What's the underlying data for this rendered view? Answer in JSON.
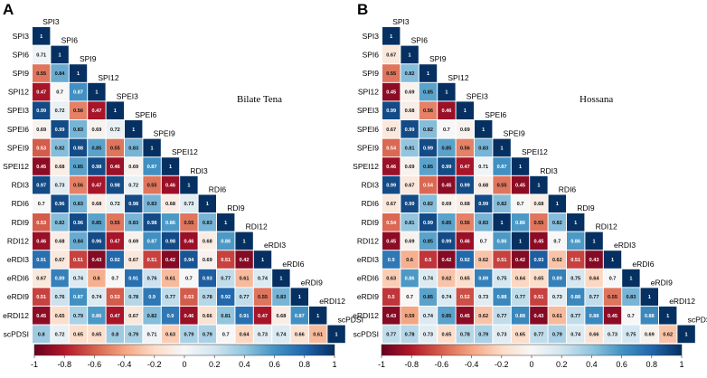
{
  "chart_data": [
    {
      "type": "heatmap",
      "panel_label": "A",
      "title": "Bilate Tena",
      "variables": [
        "SPI3",
        "SPI6",
        "SPI9",
        "SPI12",
        "SPEI3",
        "SPEI6",
        "SPEI9",
        "SPEI12",
        "RDI3",
        "RDI6",
        "RDI9",
        "RDI12",
        "eRDI3",
        "eRDI6",
        "eRDI9",
        "eRDI12",
        "scPDSI"
      ],
      "matrix": [
        [
          "1"
        ],
        [
          "0.71",
          "1"
        ],
        [
          "0.55",
          "0.84",
          "1"
        ],
        [
          "0.47",
          "0.7",
          "0.87",
          "1"
        ],
        [
          "0.99",
          "0.72",
          "0.56",
          "0.47",
          "1"
        ],
        [
          "0.69",
          "0.99",
          "0.83",
          "0.69",
          "0.72",
          "1"
        ],
        [
          "0.53",
          "0.82",
          "0.98",
          "0.85",
          "0.55",
          "0.83",
          "1"
        ],
        [
          "0.45",
          "0.68",
          "0.85",
          "0.98",
          "0.46",
          "0.69",
          "0.87",
          "1"
        ],
        [
          "0.97",
          "0.73",
          "0.56",
          "0.47",
          "0.98",
          "0.72",
          "0.55",
          "0.46",
          "1"
        ],
        [
          "0.7",
          "0.96",
          "0.83",
          "0.68",
          "0.72",
          "0.98",
          "0.83",
          "0.68",
          "0.73",
          "1"
        ],
        [
          "0.53",
          "0.82",
          "0.96",
          "0.85",
          "0.55",
          "0.83",
          "0.98",
          "0.86",
          "0.55",
          "0.83",
          "1"
        ],
        [
          "0.46",
          "0.68",
          "0.84",
          "0.96",
          "0.47",
          "0.69",
          "0.87",
          "0.98",
          "0.46",
          "0.68",
          "0.86",
          "1"
        ],
        [
          "0.91",
          "0.67",
          "0.51",
          "0.43",
          "0.92",
          "0.67",
          "0.51",
          "0.42",
          "0.94",
          "0.69",
          "0.51",
          "0.42",
          "1"
        ],
        [
          "0.67",
          "0.89",
          "0.74",
          "0.6",
          "0.7",
          "0.91",
          "0.76",
          "0.61",
          "0.7",
          "0.93",
          "0.77",
          "0.61",
          "0.74",
          "1"
        ],
        [
          "0.51",
          "0.76",
          "0.87",
          "0.74",
          "0.53",
          "0.78",
          "0.9",
          "0.77",
          "0.53",
          "0.78",
          "0.92",
          "0.77",
          "0.55",
          "0.83",
          "1"
        ],
        [
          "0.45",
          "0.65",
          "0.79",
          "0.86",
          "0.47",
          "0.67",
          "0.82",
          "0.9",
          "0.46",
          "0.66",
          "0.81",
          "0.91",
          "0.47",
          "0.68",
          "0.87",
          "1"
        ],
        [
          "0.8",
          "0.72",
          "0.65",
          "0.65",
          "0.8",
          "0.79",
          "0.71",
          "0.63",
          "0.79",
          "0.79",
          "0.7",
          "0.64",
          "0.73",
          "0.74",
          "0.66",
          "0.61",
          "1"
        ]
      ],
      "colorbar": {
        "range": [
          -1,
          1
        ],
        "ticks": [
          "-1",
          "-0.8",
          "-0.6",
          "-0.4",
          "-0.2",
          "0",
          "0.2",
          "0.4",
          "0.6",
          "0.8",
          "1"
        ]
      }
    },
    {
      "type": "heatmap",
      "panel_label": "B",
      "title": "Hossana",
      "variables": [
        "SPI3",
        "SPI6",
        "SPI9",
        "SPI12",
        "SPEI3",
        "SPEI6",
        "SPEI9",
        "SPEI12",
        "RDI3",
        "RDI6",
        "RDI9",
        "RDI12",
        "eRDI3",
        "eRDI6",
        "eRDI9",
        "eRDI12",
        "scPDSI"
      ],
      "matrix": [
        [
          "1"
        ],
        [
          "0.67",
          "1"
        ],
        [
          "0.55",
          "0.82",
          "1"
        ],
        [
          "0.45",
          "0.69",
          "0.85",
          "1"
        ],
        [
          "0.99",
          "0.68",
          "0.56",
          "0.46",
          "1"
        ],
        [
          "0.67",
          "0.99",
          "0.82",
          "0.7",
          "0.69",
          "1"
        ],
        [
          "0.54",
          "0.81",
          "0.99",
          "0.85",
          "0.56",
          "0.83",
          "1"
        ],
        [
          "0.46",
          "0.69",
          "0.85",
          "0.99",
          "0.47",
          "0.71",
          "0.87",
          "1"
        ],
        [
          "0.99",
          "0.67",
          "0.54",
          "0.45",
          "0.99",
          "0.68",
          "0.55",
          "0.45",
          "1"
        ],
        [
          "0.67",
          "0.99",
          "0.82",
          "0.69",
          "0.68",
          "0.99",
          "0.82",
          "0.7",
          "0.68",
          "1"
        ],
        [
          "0.54",
          "0.81",
          "0.99",
          "0.85",
          "0.56",
          "0.83",
          "1",
          "0.86",
          "0.55",
          "0.82",
          "1"
        ],
        [
          "0.45",
          "0.69",
          "0.85",
          "0.99",
          "0.46",
          "0.7",
          "0.86",
          "1",
          "0.45",
          "0.7",
          "0.86",
          "1"
        ],
        [
          "0.9",
          "0.6",
          "0.5",
          "0.42",
          "0.92",
          "0.62",
          "0.51",
          "0.42",
          "0.93",
          "0.62",
          "0.51",
          "0.43",
          "1"
        ],
        [
          "0.63",
          "0.86",
          "0.74",
          "0.62",
          "0.65",
          "0.89",
          "0.75",
          "0.64",
          "0.65",
          "0.89",
          "0.75",
          "0.64",
          "0.7",
          "1"
        ],
        [
          "0.5",
          "0.7",
          "0.85",
          "0.74",
          "0.52",
          "0.73",
          "0.88",
          "0.77",
          "0.51",
          "0.73",
          "0.88",
          "0.77",
          "0.55",
          "0.83",
          "1"
        ],
        [
          "0.43",
          "0.59",
          "0.74",
          "0.85",
          "0.45",
          "0.62",
          "0.77",
          "0.88",
          "0.43",
          "0.61",
          "0.77",
          "0.88",
          "0.45",
          "0.7",
          "0.88",
          "1"
        ],
        [
          "0.77",
          "0.78",
          "0.73",
          "0.65",
          "0.78",
          "0.79",
          "0.73",
          "0.65",
          "0.77",
          "0.79",
          "0.74",
          "0.66",
          "0.73",
          "0.75",
          "0.69",
          "0.62",
          "1"
        ]
      ],
      "colorbar": {
        "range": [
          -1,
          1
        ],
        "ticks": [
          "-1",
          "-0.8",
          "-0.6",
          "-0.4",
          "-0.2",
          "0",
          "0.2",
          "0.4",
          "0.6",
          "0.8",
          "1"
        ]
      }
    }
  ]
}
